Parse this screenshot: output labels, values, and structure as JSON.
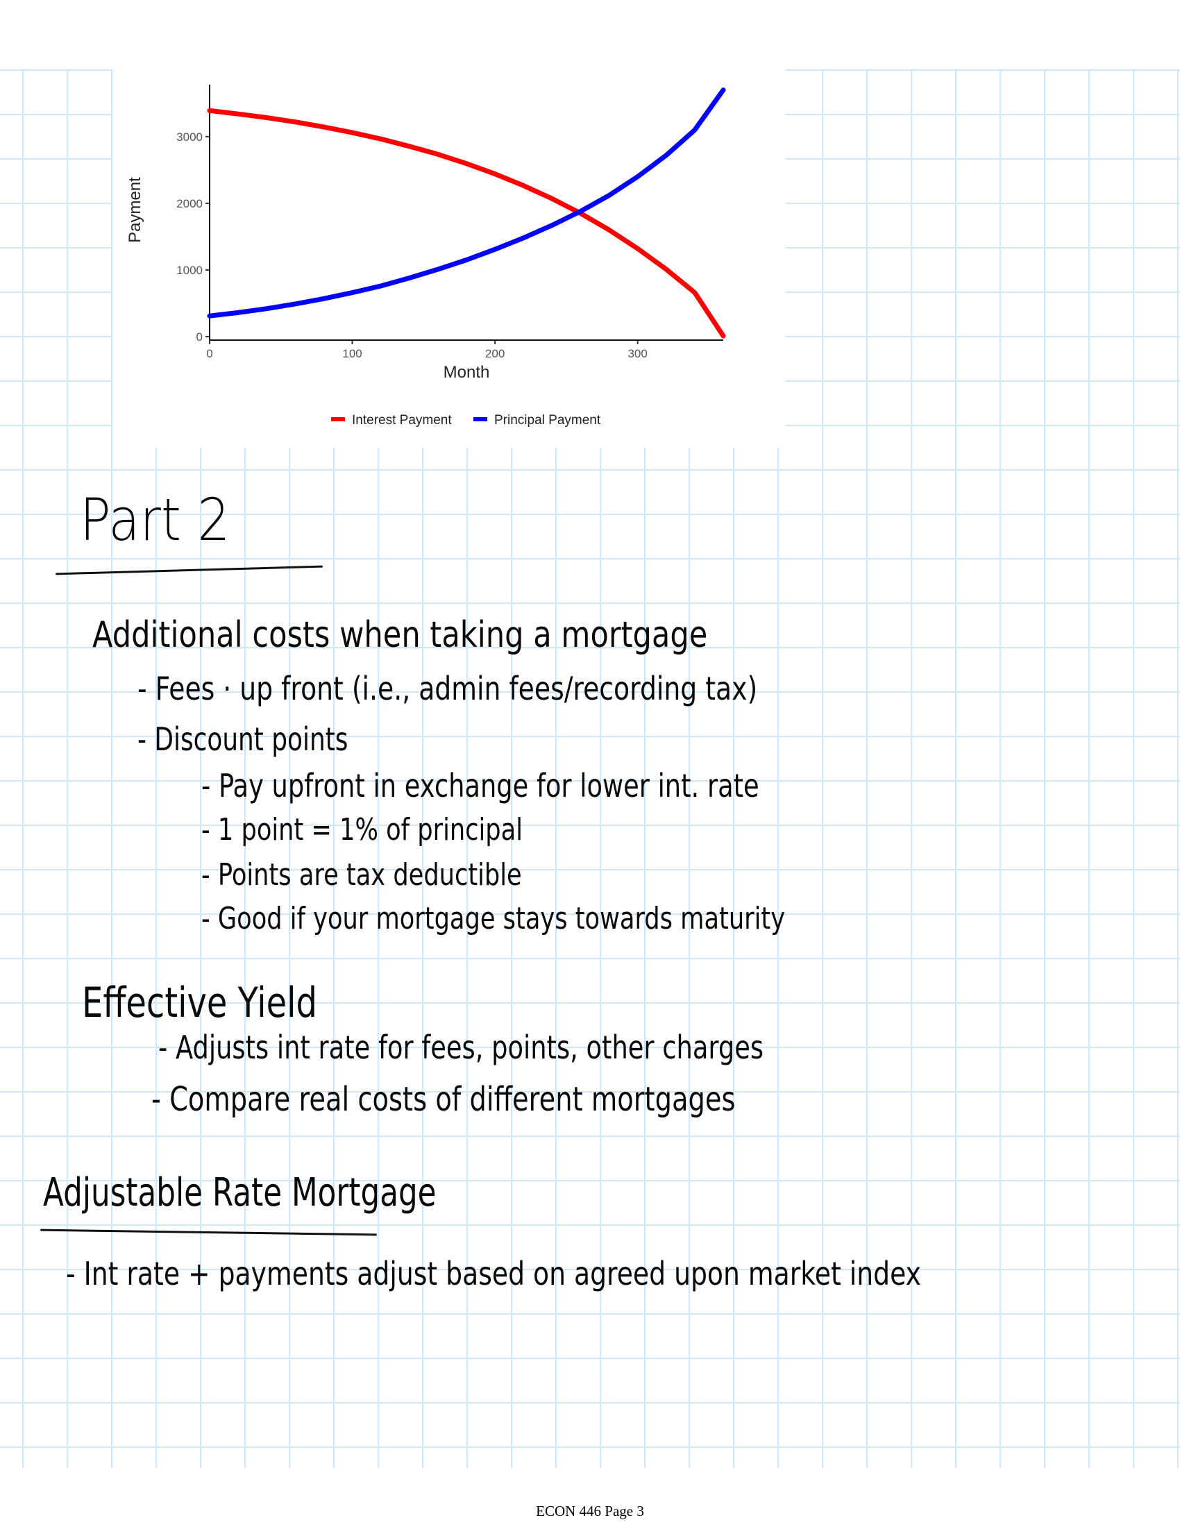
{
  "chart_data": {
    "type": "line",
    "title": "",
    "xlabel": "Month",
    "ylabel": "Payment",
    "xlim": [
      0,
      360
    ],
    "ylim": [
      0,
      3800
    ],
    "x_ticks": [
      0,
      100,
      200,
      300
    ],
    "y_ticks": [
      0,
      1000,
      2000,
      3000
    ],
    "grid": false,
    "legend_position": "bottom",
    "series": [
      {
        "name": "Interest Payment",
        "color": "#ff0000",
        "x": [
          0,
          20,
          40,
          60,
          80,
          100,
          120,
          140,
          160,
          180,
          200,
          220,
          240,
          260,
          280,
          300,
          320,
          340,
          360
        ],
        "values": [
          3390,
          3340,
          3285,
          3220,
          3145,
          3060,
          2965,
          2855,
          2735,
          2595,
          2440,
          2265,
          2070,
          1850,
          1600,
          1320,
          1010,
          660,
          10
        ]
      },
      {
        "name": "Principal Payment",
        "color": "#0000ff",
        "x": [
          0,
          20,
          40,
          60,
          80,
          100,
          120,
          140,
          160,
          180,
          200,
          220,
          240,
          260,
          280,
          300,
          320,
          340,
          360
        ],
        "values": [
          310,
          360,
          420,
          490,
          570,
          660,
          760,
          880,
          1010,
          1150,
          1310,
          1480,
          1670,
          1880,
          2120,
          2400,
          2720,
          3100,
          3700
        ]
      }
    ]
  },
  "notes": {
    "part_heading": "Part 2",
    "additional_costs": {
      "heading": "Additional costs when taking a mortgage",
      "fees": "- Fees · up front (i.e., admin fees/recording tax)",
      "discount_points": "- Discount points",
      "sub_items": [
        "- Pay upfront in exchange for lower int. rate",
        "- 1 point = 1% of principal",
        "- Points are tax deductible",
        "- Good if your mortgage stays towards maturity"
      ]
    },
    "effective_yield": {
      "heading": "Effective Yield",
      "items": [
        "- Adjusts int rate for fees, points, other charges",
        "- Compare real costs of different mortgages"
      ]
    },
    "arm": {
      "heading": "Adjustable Rate Mortgage",
      "item": "- Int rate + payments adjust based on agreed upon market index"
    }
  },
  "footer": "ECON 446 Page 3"
}
